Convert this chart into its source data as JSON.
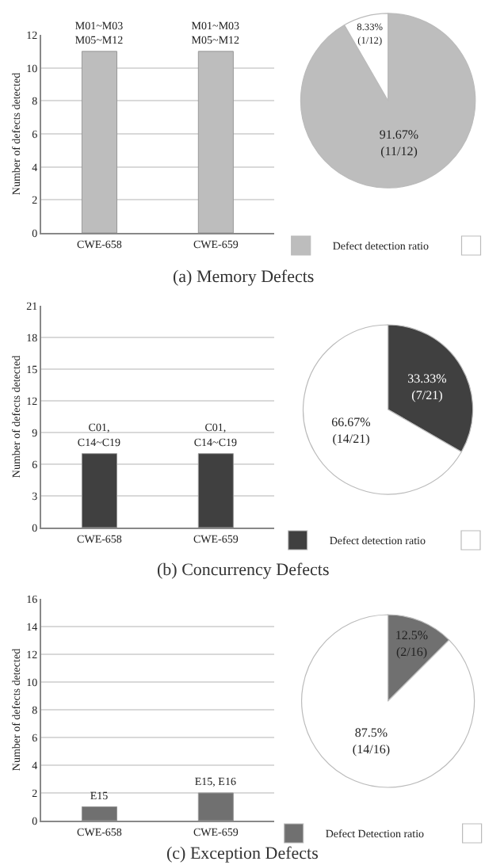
{
  "chart_data": [
    {
      "type": "bar",
      "categories": [
        "CWE-658",
        "CWE-659"
      ],
      "values": [
        11,
        11
      ],
      "color": "#bdbdbd",
      "value_labels": [
        "M01~M03\nM05~M12",
        "M01~M03\nM05~M12"
      ],
      "ylabel": "Number of defects detected",
      "ylim": [
        0,
        12
      ],
      "yticks": [
        0,
        2,
        4,
        6,
        8,
        10,
        12
      ],
      "grid": "y",
      "legend": false,
      "annotations": [
        "(a) Memory Defects"
      ]
    },
    {
      "type": "pie",
      "categories": [
        "Defect detection ratio",
        null
      ],
      "values": [
        91.67,
        8.33
      ],
      "colors": [
        "#bdbdbd",
        "#ffffff"
      ],
      "value_labels": [
        "91.67%\n(11/12)",
        "8.33%\n(1/12)"
      ],
      "legend": "bottom"
    },
    {
      "type": "bar",
      "categories": [
        "CWE-658",
        "CWE-659"
      ],
      "values": [
        7,
        7
      ],
      "color": "#404040",
      "value_labels": [
        "C01,\nC14~C19",
        "C01,\nC14~C19"
      ],
      "ylabel": "Number of defects detected",
      "ylim": [
        0,
        21
      ],
      "yticks": [
        0,
        3,
        6,
        9,
        12,
        15,
        18,
        21
      ],
      "grid": "y",
      "legend": false,
      "annotations": [
        "(b) Concurrency Defects"
      ]
    },
    {
      "type": "pie",
      "categories": [
        "Defect detection ratio",
        null
      ],
      "values": [
        33.33,
        66.67
      ],
      "colors": [
        "#404040",
        "#ffffff"
      ],
      "value_labels": [
        "33.33%\n(7/21)",
        "66.67%\n(14/21)"
      ],
      "legend": "bottom"
    },
    {
      "type": "bar",
      "categories": [
        "CWE-658",
        "CWE-659"
      ],
      "values": [
        1,
        2
      ],
      "color": "#707070",
      "value_labels": [
        "E15",
        "E15, E16"
      ],
      "ylabel": "Number of defects detected",
      "ylim": [
        0,
        16
      ],
      "yticks": [
        0,
        2,
        4,
        6,
        8,
        10,
        12,
        14,
        16
      ],
      "grid": "y",
      "legend": false,
      "annotations": [
        "(c) Exception Defects"
      ]
    },
    {
      "type": "pie",
      "categories": [
        "Defect Detection ratio",
        null
      ],
      "values": [
        12.5,
        87.5
      ],
      "colors": [
        "#707070",
        "#ffffff"
      ],
      "value_labels": [
        "12.5%\n(2/16)",
        "87.5%\n(14/16)"
      ],
      "legend": "bottom"
    }
  ]
}
